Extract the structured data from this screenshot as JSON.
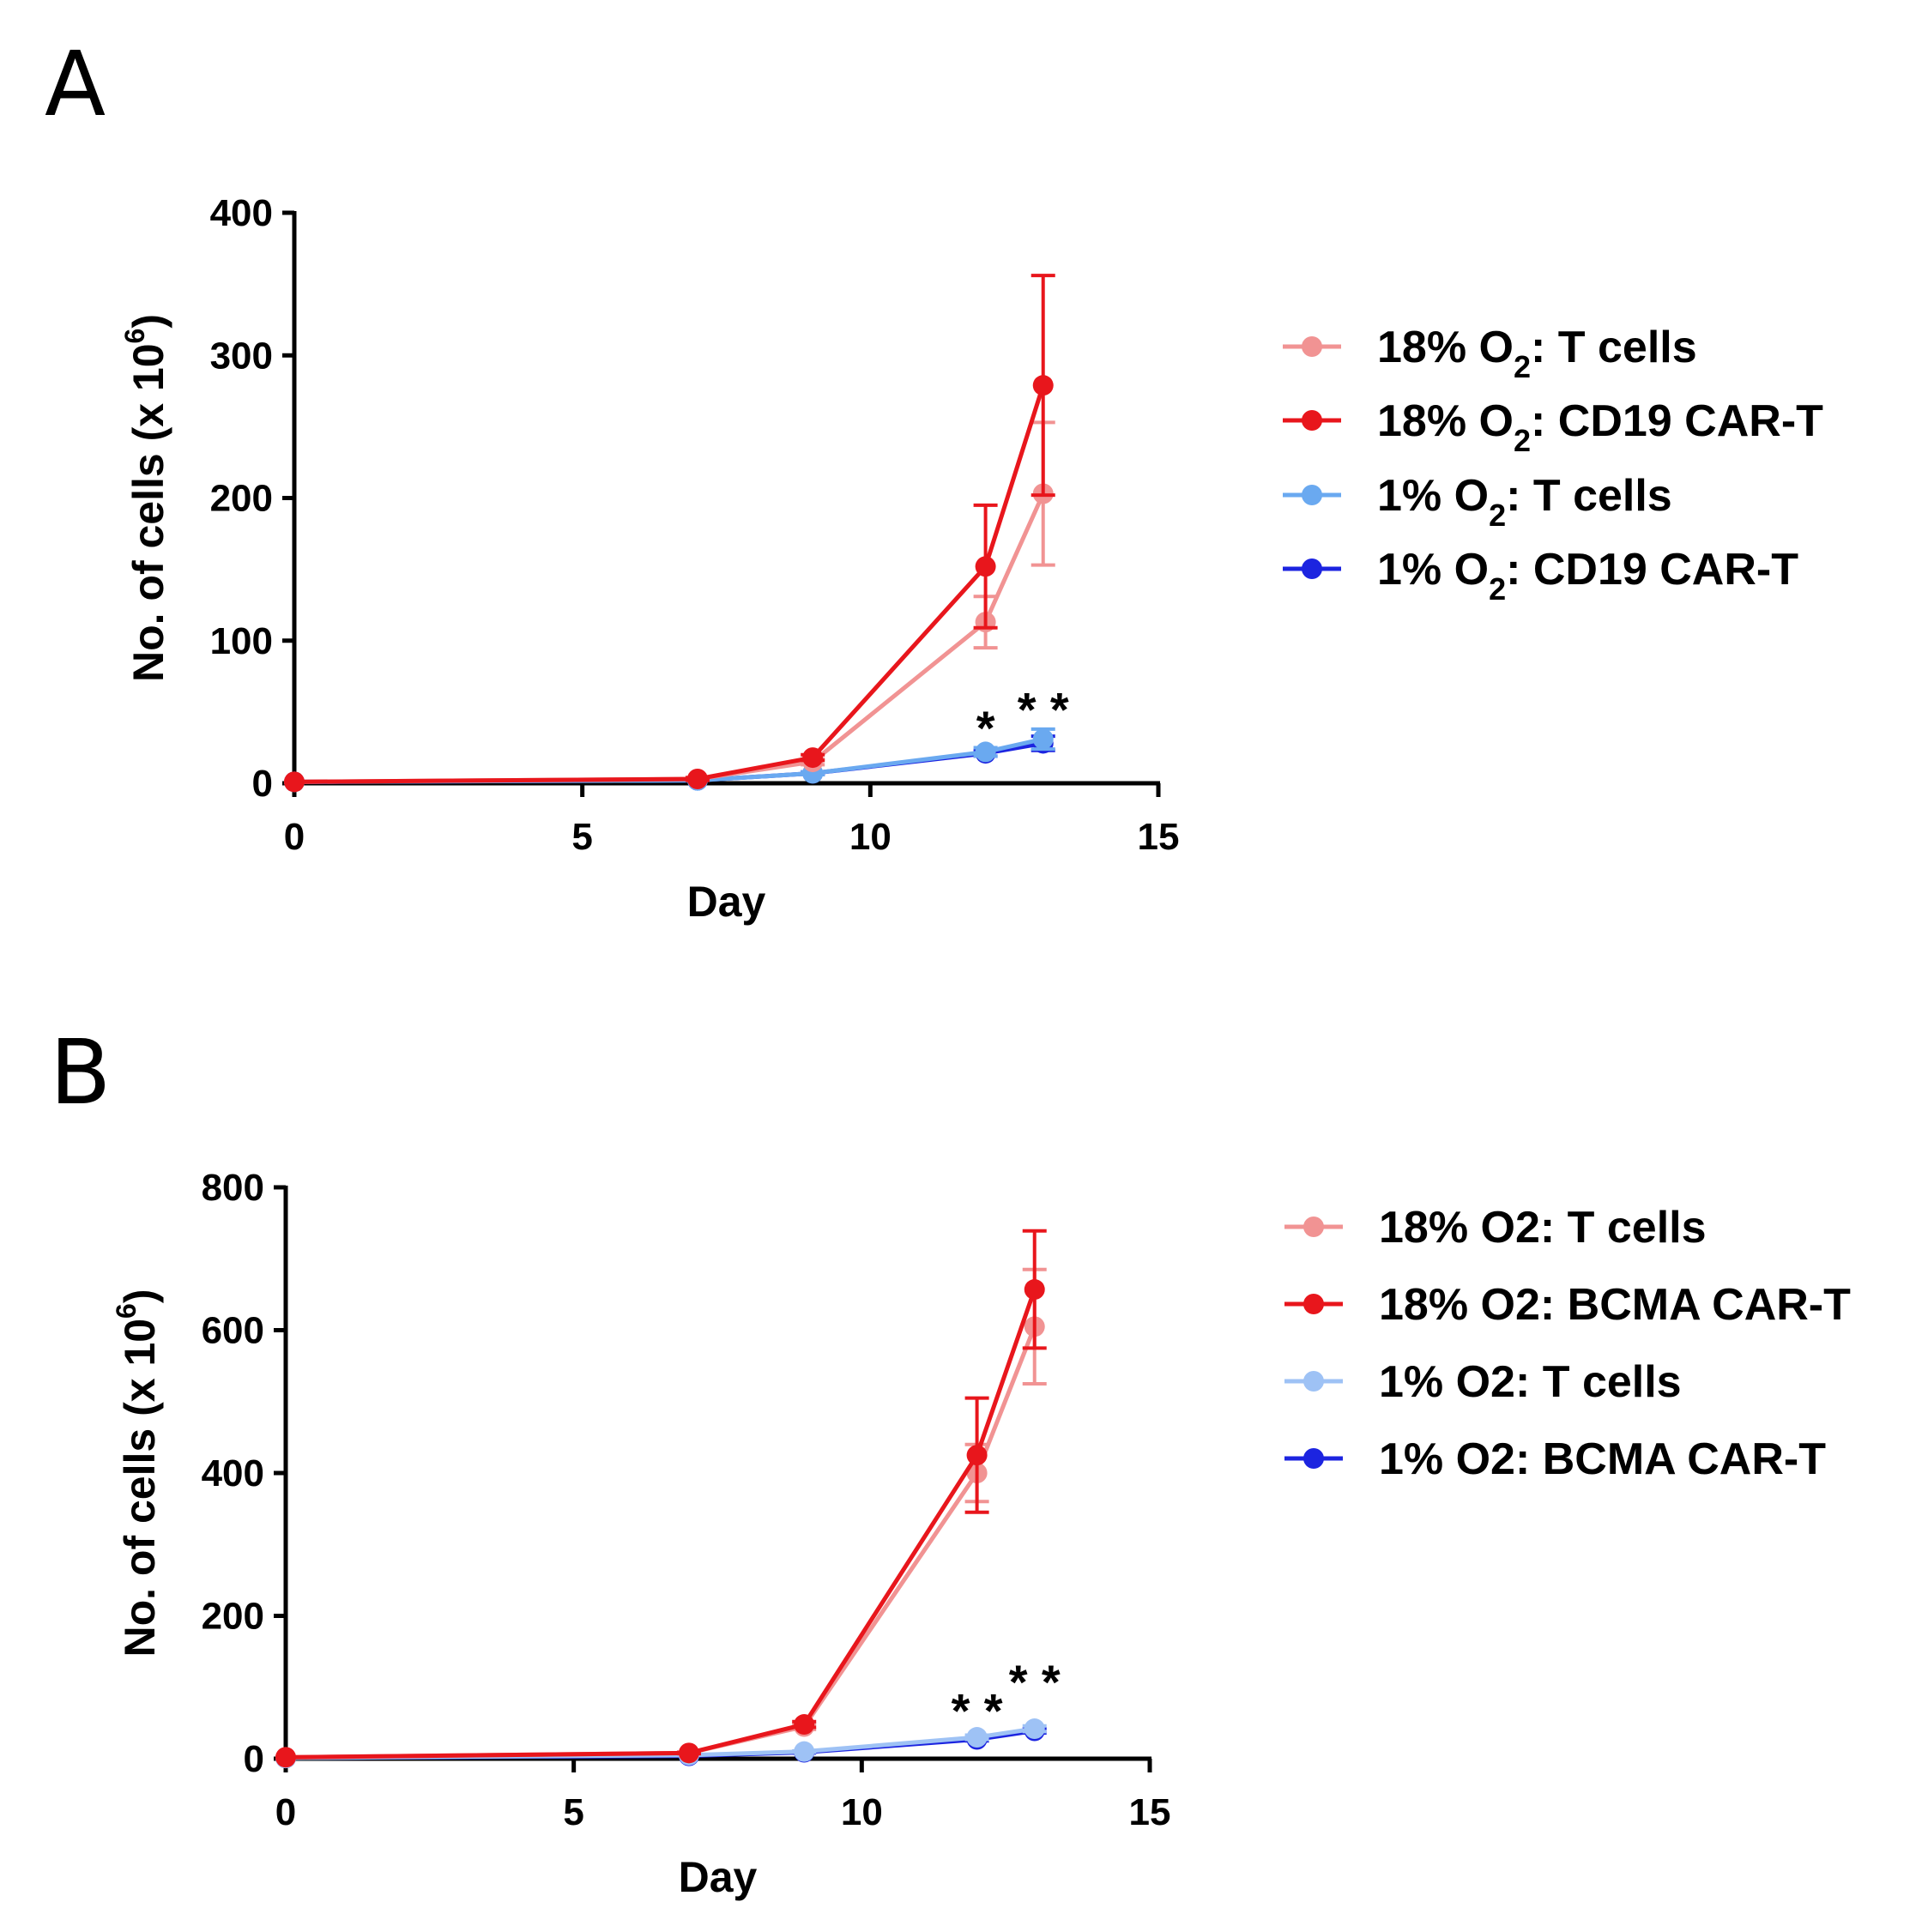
{
  "colors": {
    "t18": "#f19393",
    "car18": "#e8161c",
    "t1": "#6aa9f0",
    "car1": "#1c24e0",
    "t1_b": "#9ec2f5",
    "axis": "#000000"
  },
  "chart_data": [
    {
      "type": "line",
      "panel_label": "A",
      "xlabel": "Day",
      "ylabel_main": "No. of cells (x 10",
      "ylabel_sup": "6",
      "ylabel_close": ")",
      "xlim": [
        0,
        15
      ],
      "ylim": [
        0,
        400
      ],
      "xticks": [
        0,
        5,
        10,
        15
      ],
      "yticks": [
        0,
        100,
        200,
        300,
        400
      ],
      "xtick_labels": [
        "0",
        "5",
        "10",
        "15"
      ],
      "ytick_labels": [
        "0",
        "100",
        "200",
        "300",
        "400"
      ],
      "x": [
        0,
        7,
        9,
        12,
        13
      ],
      "series": [
        {
          "name": "18% O2: T cells",
          "legend_pre": "18% O",
          "legend_sub": "2",
          "legend_post": ": T cells",
          "color_key": "t18",
          "values": [
            1,
            3,
            15,
            113,
            203
          ],
          "errors": [
            0,
            1,
            2,
            18,
            50
          ]
        },
        {
          "name": "18% O2: CD19 CAR-T",
          "legend_pre": "18% O",
          "legend_sub": "2",
          "legend_post": ": CD19 CAR-T",
          "color_key": "car18",
          "values": [
            1,
            3,
            18,
            152,
            279
          ],
          "errors": [
            0,
            1,
            2,
            43,
            77
          ]
        },
        {
          "name": "1% O2: T cells",
          "legend_pre": "1% O",
          "legend_sub": "2",
          "legend_post": ": T cells",
          "color_key": "t1",
          "values": [
            1,
            2,
            7,
            22,
            31
          ],
          "errors": [
            0,
            0,
            1,
            3,
            7
          ]
        },
        {
          "name": "1% O2: CD19 CAR-T",
          "legend_pre": "1% O",
          "legend_sub": "2",
          "legend_post": ": CD19 CAR-T",
          "color_key": "car1",
          "values": [
            1,
            2,
            7,
            21,
            28
          ],
          "errors": [
            0,
            0,
            1,
            2,
            5
          ]
        }
      ],
      "annotations": [
        {
          "text": "*",
          "x": 12,
          "y": 45
        },
        {
          "text": "**",
          "x": 13,
          "y": 58
        }
      ]
    },
    {
      "type": "line",
      "panel_label": "B",
      "xlabel": "Day",
      "ylabel_main": "No. of cells (x 10",
      "ylabel_sup": "6",
      "ylabel_close": ")",
      "xlim": [
        0,
        15
      ],
      "ylim": [
        0,
        800
      ],
      "xticks": [
        0,
        5,
        10,
        15
      ],
      "yticks": [
        0,
        200,
        400,
        600,
        800
      ],
      "xtick_labels": [
        "0",
        "5",
        "10",
        "15"
      ],
      "ytick_labels": [
        "0",
        "200",
        "400",
        "600",
        "800"
      ],
      "x": [
        0,
        7,
        9,
        12,
        13
      ],
      "series": [
        {
          "name": "18% O2: T cells",
          "legend_pre": "18% O2: T cells",
          "legend_sub": "",
          "legend_post": "",
          "color_key": "t18",
          "values": [
            2,
            8,
            45,
            400,
            605
          ],
          "errors": [
            0,
            1,
            4,
            40,
            80
          ]
        },
        {
          "name": "18% O2: BCMA CAR-T",
          "legend_pre": "18% O2: BCMA CAR-T",
          "legend_sub": "",
          "legend_post": "",
          "color_key": "car18",
          "values": [
            2,
            8,
            48,
            425,
            657
          ],
          "errors": [
            0,
            1,
            4,
            80,
            82
          ]
        },
        {
          "name": "1% O2: T cells",
          "legend_pre": "1% O2: T cells",
          "legend_sub": "",
          "legend_post": "",
          "color_key": "t1_b",
          "values": [
            1,
            5,
            10,
            30,
            42
          ],
          "errors": [
            0,
            0,
            1,
            3,
            4
          ]
        },
        {
          "name": "1% O2: BCMA CAR-T",
          "legend_pre": "1% O2: BCMA CAR-T",
          "legend_sub": "",
          "legend_post": "",
          "color_key": "car1",
          "values": [
            1,
            4,
            9,
            27,
            39
          ],
          "errors": [
            0,
            0,
            1,
            2,
            3
          ]
        }
      ],
      "annotations": [
        {
          "text": "**",
          "x": 12,
          "y": 80
        },
        {
          "text": "**",
          "x": 13,
          "y": 120
        }
      ]
    }
  ]
}
